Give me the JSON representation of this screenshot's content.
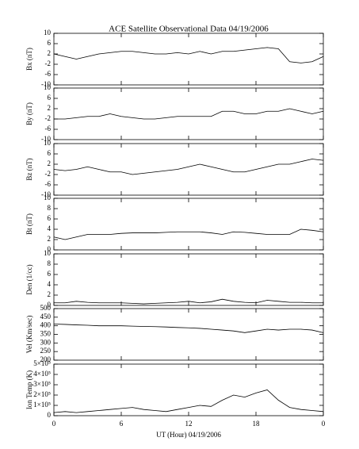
{
  "chart_data": [
    {
      "type": "line",
      "title": "ACE Satellite Observational Data  04/19/2006",
      "ylabel": "Bx (nT)",
      "ylim": [
        -10,
        10
      ],
      "yticks": [
        -10,
        -6,
        -2,
        2,
        6,
        10
      ],
      "color": "#000000",
      "x": [
        0,
        1,
        2,
        3,
        4,
        5,
        6,
        7,
        8,
        9,
        10,
        11,
        12,
        13,
        14,
        15,
        16,
        17,
        18,
        19,
        20,
        21,
        22,
        23,
        24
      ],
      "values": [
        2,
        1,
        0,
        1,
        2,
        2.5,
        3,
        3,
        2.5,
        2,
        2,
        2.5,
        2,
        3,
        2,
        3,
        3,
        3.5,
        4,
        4.5,
        4,
        -1,
        -1.5,
        -1,
        1
      ]
    },
    {
      "type": "line",
      "ylabel": "By (nT)",
      "ylim": [
        -10,
        10
      ],
      "yticks": [
        -10,
        -6,
        -2,
        2,
        6,
        10
      ],
      "color": "#000000",
      "x": [
        0,
        1,
        2,
        3,
        4,
        5,
        6,
        7,
        8,
        9,
        10,
        11,
        12,
        13,
        14,
        15,
        16,
        17,
        18,
        19,
        20,
        21,
        22,
        23,
        24
      ],
      "values": [
        -2,
        -2,
        -1.5,
        -1,
        -1,
        0,
        -1,
        -1.5,
        -2,
        -2,
        -1.5,
        -1,
        -1,
        -1,
        -1,
        1,
        1,
        0,
        0,
        1,
        1,
        2,
        1,
        0,
        1
      ]
    },
    {
      "type": "line",
      "ylabel": "Bz (nT)",
      "ylim": [
        -10,
        10
      ],
      "yticks": [
        -10,
        -6,
        -2,
        2,
        6,
        10
      ],
      "color": "#000000",
      "x": [
        0,
        1,
        2,
        3,
        4,
        5,
        6,
        7,
        8,
        9,
        10,
        11,
        12,
        13,
        14,
        15,
        16,
        17,
        18,
        19,
        20,
        21,
        22,
        23,
        24
      ],
      "values": [
        0,
        -0.5,
        0,
        1,
        0,
        -1,
        -1,
        -2,
        -1.5,
        -1,
        -0.5,
        0,
        1,
        2,
        1,
        0,
        -1,
        -1,
        0,
        1,
        2,
        2,
        3,
        4,
        3.5
      ]
    },
    {
      "type": "line",
      "ylabel": "Bt (nT)",
      "ylim": [
        0,
        10
      ],
      "yticks": [
        0,
        2,
        4,
        6,
        8,
        10
      ],
      "color": "#000000",
      "x": [
        0,
        1,
        2,
        3,
        4,
        5,
        6,
        7,
        8,
        9,
        10,
        11,
        12,
        13,
        14,
        15,
        16,
        17,
        18,
        19,
        20,
        21,
        22,
        23,
        24
      ],
      "values": [
        2.5,
        2,
        2.5,
        3,
        3,
        3,
        3.2,
        3.3,
        3.3,
        3.3,
        3.4,
        3.5,
        3.5,
        3.5,
        3.3,
        3,
        3.5,
        3.4,
        3.2,
        3,
        3,
        3,
        4,
        3.8,
        3.5
      ]
    },
    {
      "type": "line",
      "ylabel": "Den (1/cc)",
      "ylim": [
        0,
        10
      ],
      "yticks": [
        0,
        2,
        4,
        6,
        8,
        10
      ],
      "color": "#000000",
      "x": [
        0,
        1,
        2,
        3,
        4,
        5,
        6,
        7,
        8,
        9,
        10,
        11,
        12,
        13,
        14,
        15,
        16,
        17,
        18,
        19,
        20,
        21,
        22,
        23,
        24
      ],
      "values": [
        0.5,
        0.5,
        0.8,
        0.6,
        0.5,
        0.5,
        0.5,
        0.4,
        0.3,
        0.4,
        0.5,
        0.6,
        0.8,
        0.5,
        0.7,
        1.2,
        0.8,
        0.6,
        0.5,
        1,
        0.8,
        0.6,
        0.6,
        0.5,
        0.5
      ]
    },
    {
      "type": "line",
      "ylabel": "Vel (Km/sec)",
      "ylim": [
        200,
        500
      ],
      "yticks": [
        200,
        250,
        300,
        350,
        400,
        450,
        500
      ],
      "color": "#000000",
      "x": [
        0,
        1,
        2,
        3,
        4,
        5,
        6,
        7,
        8,
        9,
        10,
        11,
        12,
        13,
        14,
        15,
        16,
        17,
        18,
        19,
        20,
        21,
        22,
        23,
        24
      ],
      "values": [
        410,
        408,
        405,
        403,
        400,
        400,
        400,
        398,
        396,
        395,
        393,
        390,
        388,
        385,
        380,
        375,
        370,
        360,
        370,
        380,
        375,
        380,
        380,
        375,
        360
      ]
    },
    {
      "type": "line",
      "ylabel": "Ion Temp (K)",
      "ylim": [
        0,
        500000
      ],
      "yticks": [
        0,
        {
          "value": 100000,
          "label": "1×10⁵"
        },
        {
          "value": 200000,
          "label": "2×10⁵"
        },
        {
          "value": 300000,
          "label": "3×10⁵"
        },
        {
          "value": 400000,
          "label": "4×10⁵"
        },
        {
          "value": 500000,
          "label": "5×10⁵"
        }
      ],
      "color": "#000000",
      "x": [
        0,
        1,
        2,
        3,
        4,
        5,
        6,
        7,
        8,
        9,
        10,
        11,
        12,
        13,
        14,
        15,
        16,
        17,
        18,
        19,
        20,
        21,
        22,
        23,
        24
      ],
      "values": [
        30000,
        40000,
        30000,
        40000,
        50000,
        60000,
        70000,
        80000,
        60000,
        50000,
        40000,
        60000,
        80000,
        100000,
        90000,
        150000,
        200000,
        180000,
        220000,
        250000,
        150000,
        80000,
        60000,
        50000,
        40000
      ],
      "xlim": [
        0,
        24
      ],
      "xticks": [
        0,
        6,
        12,
        18,
        {
          "value": 24,
          "label": "0"
        }
      ],
      "xlabel": "UT (Hour)  04/19/2006"
    }
  ]
}
